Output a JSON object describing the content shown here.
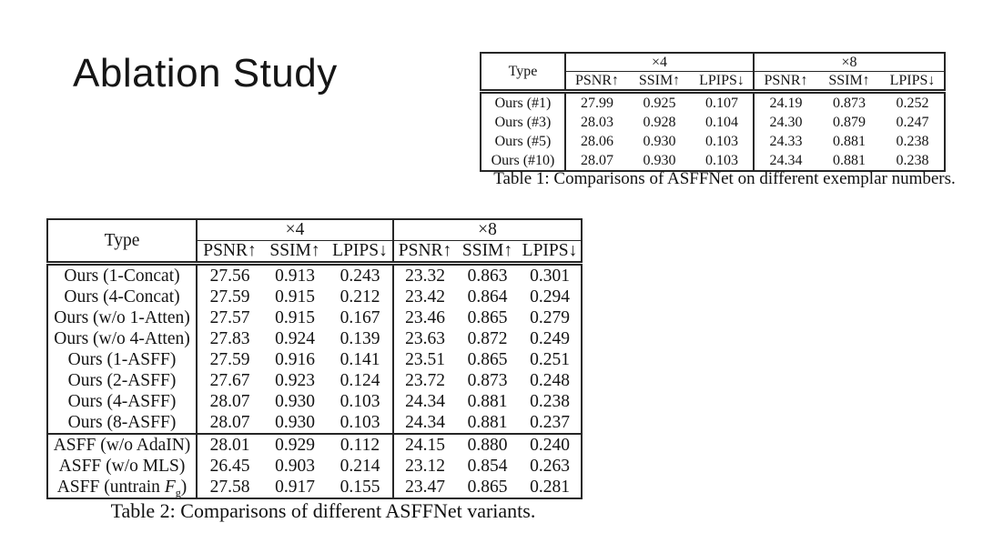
{
  "slide": {
    "title": "Ablation Study"
  },
  "table1": {
    "header": {
      "type": "Type",
      "scale4": "×4",
      "scale8": "×8",
      "metrics": [
        "PSNR↑",
        "SSIM↑",
        "LPIPS↓"
      ]
    },
    "rows": [
      {
        "label": "Ours (#1)",
        "x4": [
          "27.99",
          "0.925",
          "0.107"
        ],
        "x8": [
          "24.19",
          "0.873",
          "0.252"
        ]
      },
      {
        "label": "Ours (#3)",
        "x4": [
          "28.03",
          "0.928",
          "0.104"
        ],
        "x8": [
          "24.30",
          "0.879",
          "0.247"
        ]
      },
      {
        "label": "Ours (#5)",
        "x4": [
          "28.06",
          "0.930",
          "0.103"
        ],
        "x8": [
          "24.33",
          "0.881",
          "0.238"
        ]
      },
      {
        "label": "Ours (#10)",
        "x4": [
          "28.07",
          "0.930",
          "0.103"
        ],
        "x8": [
          "24.34",
          "0.881",
          "0.238"
        ]
      }
    ],
    "caption": "Table 1: Comparisons of ASFFNet on different exemplar numbers."
  },
  "table2": {
    "header": {
      "type": "Type",
      "scale4": "×4",
      "scale8": "×8",
      "metrics": [
        "PSNR↑",
        "SSIM↑",
        "LPIPS↓"
      ]
    },
    "rows_ours": [
      {
        "label": "Ours (1-Concat)",
        "x4": [
          "27.56",
          "0.913",
          "0.243"
        ],
        "x8": [
          "23.32",
          "0.863",
          "0.301"
        ]
      },
      {
        "label": "Ours (4-Concat)",
        "x4": [
          "27.59",
          "0.915",
          "0.212"
        ],
        "x8": [
          "23.42",
          "0.864",
          "0.294"
        ]
      },
      {
        "label": "Ours (w/o 1-Atten)",
        "x4": [
          "27.57",
          "0.915",
          "0.167"
        ],
        "x8": [
          "23.46",
          "0.865",
          "0.279"
        ]
      },
      {
        "label": "Ours (w/o 4-Atten)",
        "x4": [
          "27.83",
          "0.924",
          "0.139"
        ],
        "x8": [
          "23.63",
          "0.872",
          "0.249"
        ]
      },
      {
        "label": "Ours (1-ASFF)",
        "x4": [
          "27.59",
          "0.916",
          "0.141"
        ],
        "x8": [
          "23.51",
          "0.865",
          "0.251"
        ]
      },
      {
        "label": "Ours (2-ASFF)",
        "x4": [
          "27.67",
          "0.923",
          "0.124"
        ],
        "x8": [
          "23.72",
          "0.873",
          "0.248"
        ]
      },
      {
        "label": "Ours (4-ASFF)",
        "x4": [
          "28.07",
          "0.930",
          "0.103"
        ],
        "x8": [
          "24.34",
          "0.881",
          "0.238"
        ]
      },
      {
        "label": "Ours (8-ASFF)",
        "x4": [
          "28.07",
          "0.930",
          "0.103"
        ],
        "x8": [
          "24.34",
          "0.881",
          "0.237"
        ]
      }
    ],
    "rows_asff": [
      {
        "label": "ASFF (w/o AdaIN)",
        "x4": [
          "28.01",
          "0.929",
          "0.112"
        ],
        "x8": [
          "24.15",
          "0.880",
          "0.240"
        ]
      },
      {
        "label": "ASFF (w/o MLS)",
        "x4": [
          "26.45",
          "0.903",
          "0.214"
        ],
        "x8": [
          "23.12",
          "0.854",
          "0.263"
        ]
      },
      {
        "label_rich": {
          "pre": "ASFF (untrain ",
          "var": "F",
          "sub": "g",
          "post": ")"
        },
        "x4": [
          "27.58",
          "0.917",
          "0.155"
        ],
        "x8": [
          "23.47",
          "0.865",
          "0.281"
        ]
      }
    ],
    "caption": "Table 2: Comparisons of different ASFFNet variants."
  }
}
